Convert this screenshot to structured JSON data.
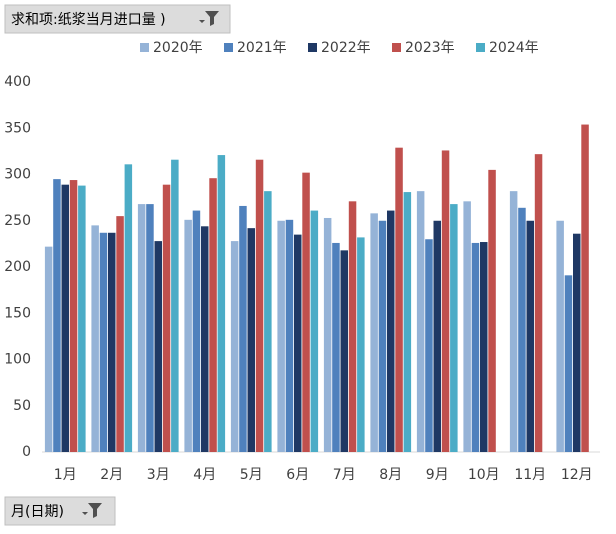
{
  "filters": {
    "value_field": "求和项:纸浆当月进口量  )",
    "axis_field": "月(日期)"
  },
  "chart_data": {
    "type": "bar",
    "categories": [
      "1月",
      "2月",
      "3月",
      "4月",
      "5月",
      "6月",
      "7月",
      "8月",
      "9月",
      "10月",
      "11月",
      "12月"
    ],
    "series": [
      {
        "name": "2020年",
        "color": "#95b3d7",
        "values": [
          222,
          245,
          268,
          251,
          228,
          250,
          253,
          258,
          282,
          271,
          282,
          250
        ]
      },
      {
        "name": "2021年",
        "color": "#4f81bd",
        "values": [
          295,
          237,
          268,
          261,
          266,
          251,
          226,
          250,
          230,
          226,
          264,
          191
        ]
      },
      {
        "name": "2022年",
        "color": "#1f3864",
        "values": [
          289,
          237,
          228,
          244,
          242,
          235,
          218,
          261,
          250,
          227,
          250,
          236
        ]
      },
      {
        "name": "2023年",
        "color": "#c0504d",
        "values": [
          294,
          255,
          289,
          296,
          316,
          302,
          271,
          329,
          326,
          305,
          322,
          354
        ]
      },
      {
        "name": "2024年",
        "color": "#4bacc6",
        "values": [
          288,
          311,
          316,
          321,
          282,
          261,
          232,
          281,
          268,
          null,
          null,
          null
        ]
      }
    ],
    "ylim": [
      0,
      400
    ],
    "yticks": [
      0,
      50,
      100,
      150,
      200,
      250,
      300,
      350,
      400
    ],
    "grid": false
  }
}
